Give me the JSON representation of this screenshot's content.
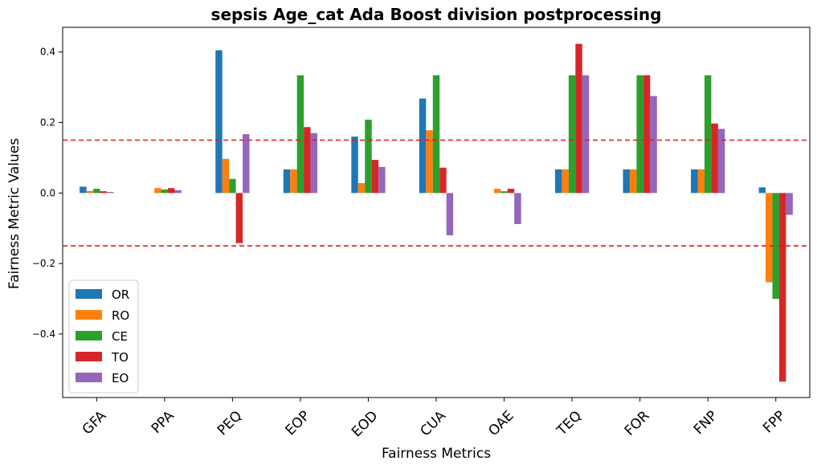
{
  "chart_data": {
    "type": "bar",
    "title": "sepsis Age_cat Ada Boost division postprocessing",
    "xlabel": "Fairness Metrics",
    "ylabel": "Fairness Metric Values",
    "ylim": [
      -0.58,
      0.47
    ],
    "yticks": [
      0.4,
      0.2,
      0.0,
      -0.2,
      -0.4
    ],
    "ytick_labels": [
      "0.4",
      "0.2",
      "0.0",
      "−0.2",
      "−0.4"
    ],
    "categories": [
      "GFA",
      "PPA",
      "PEQ",
      "EOP",
      "EOD",
      "CUA",
      "OAE",
      "TEQ",
      "FOR",
      "FNP",
      "FPP"
    ],
    "series": [
      {
        "name": "OR",
        "color": "#1f77b4",
        "values": [
          0.018,
          0.0,
          0.405,
          0.067,
          0.16,
          0.268,
          0.0,
          0.067,
          0.067,
          0.067,
          0.016
        ]
      },
      {
        "name": "RO",
        "color": "#ff7f0e",
        "values": [
          0.006,
          0.014,
          0.097,
          0.067,
          0.028,
          0.178,
          0.012,
          0.067,
          0.067,
          0.067,
          -0.253
        ]
      },
      {
        "name": "CE",
        "color": "#2ca02c",
        "values": [
          0.012,
          0.01,
          0.04,
          0.334,
          0.208,
          0.334,
          0.005,
          0.334,
          0.334,
          0.334,
          -0.3
        ]
      },
      {
        "name": "TO",
        "color": "#d62728",
        "values": [
          0.005,
          0.014,
          -0.142,
          0.187,
          0.094,
          0.072,
          0.012,
          0.423,
          0.334,
          0.197,
          -0.535
        ]
      },
      {
        "name": "EO",
        "color": "#9467bd",
        "values": [
          0.003,
          0.008,
          0.167,
          0.17,
          0.074,
          -0.12,
          -0.088,
          0.334,
          0.275,
          0.182,
          -0.062
        ]
      }
    ],
    "reference_lines": [
      0.15,
      -0.15
    ],
    "reference_line_color": "#e31a1c",
    "grid": false,
    "legend_position": "lower-left"
  }
}
